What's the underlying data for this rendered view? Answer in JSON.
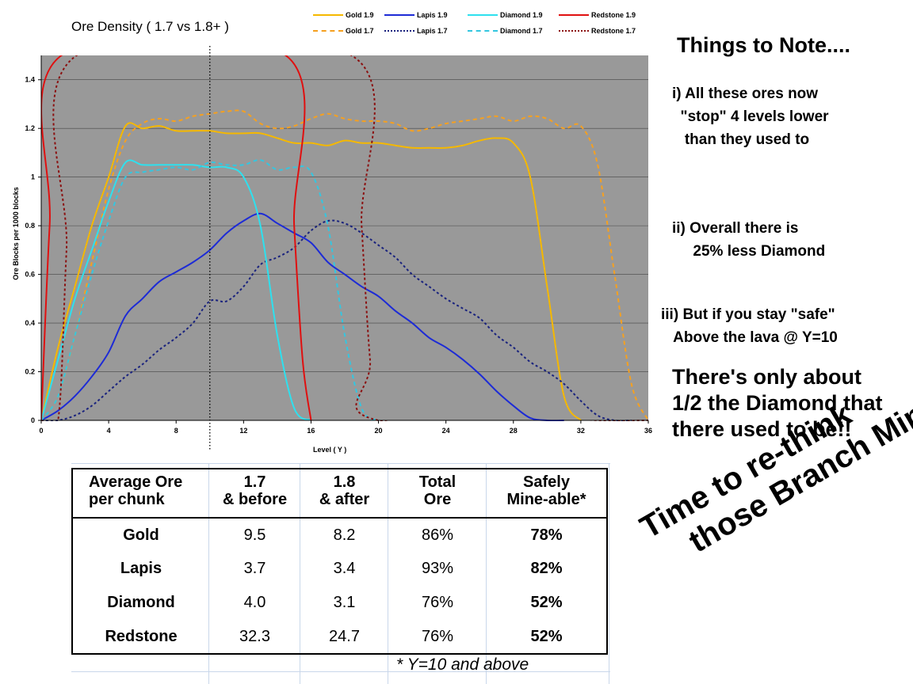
{
  "chart_data": {
    "type": "line",
    "title": "Ore Density ( 1.7 vs 1.8+ )",
    "xlabel": "Level ( Y )",
    "ylabel": "Ore Blocks per 1000 blocks",
    "xlim": [
      0,
      36
    ],
    "ylim": [
      0,
      1.5
    ],
    "x_ticks": [
      "0",
      "4",
      "8",
      "12",
      "16",
      "20",
      "24",
      "28",
      "32",
      "36"
    ],
    "y_ticks": [
      "0",
      "0.2",
      "0.4",
      "0.6",
      "0.8",
      "1",
      "1.2",
      "1.4"
    ],
    "background": "#999999",
    "grid": true,
    "legend_position": "top",
    "marker_line_x": 10,
    "series": [
      {
        "name": "Gold 1.9",
        "color": "#f5b800",
        "dash": "solid",
        "x": [
          0,
          1,
          2,
          3,
          4,
          5,
          6,
          7,
          8,
          9,
          10,
          11,
          12,
          13,
          14,
          15,
          16,
          17,
          18,
          19,
          20,
          21,
          22,
          23,
          24,
          25,
          26,
          27,
          28,
          29,
          30,
          31,
          32
        ],
        "y": [
          0,
          0.3,
          0.55,
          0.8,
          1.0,
          1.21,
          1.2,
          1.21,
          1.19,
          1.19,
          1.19,
          1.18,
          1.18,
          1.18,
          1.16,
          1.14,
          1.14,
          1.13,
          1.15,
          1.14,
          1.14,
          1.13,
          1.12,
          1.12,
          1.12,
          1.13,
          1.15,
          1.16,
          1.14,
          1.0,
          0.55,
          0.1,
          0
        ]
      },
      {
        "name": "Gold 1.7",
        "color": "#f5a020",
        "dash": "dashed",
        "x": [
          0,
          1,
          2,
          3,
          4,
          5,
          6,
          7,
          8,
          9,
          10,
          11,
          12,
          13,
          14,
          15,
          16,
          17,
          18,
          19,
          20,
          21,
          22,
          23,
          24,
          25,
          26,
          27,
          28,
          29,
          30,
          31,
          32,
          33,
          34,
          35,
          36
        ],
        "y": [
          0,
          0.1,
          0.35,
          0.65,
          0.95,
          1.15,
          1.22,
          1.24,
          1.23,
          1.25,
          1.26,
          1.27,
          1.27,
          1.22,
          1.2,
          1.21,
          1.24,
          1.26,
          1.24,
          1.23,
          1.23,
          1.22,
          1.19,
          1.2,
          1.22,
          1.23,
          1.24,
          1.25,
          1.23,
          1.25,
          1.24,
          1.2,
          1.21,
          1.05,
          0.6,
          0.15,
          0
        ]
      },
      {
        "name": "Lapis 1.9",
        "color": "#1d2bd6",
        "dash": "solid",
        "x": [
          0,
          1,
          2,
          3,
          4,
          5,
          6,
          7,
          8,
          9,
          10,
          11,
          12,
          13,
          14,
          15,
          16,
          17,
          18,
          19,
          20,
          21,
          22,
          23,
          24,
          25,
          26,
          27,
          28,
          29,
          30,
          31
        ],
        "y": [
          0,
          0.04,
          0.1,
          0.18,
          0.28,
          0.43,
          0.5,
          0.57,
          0.61,
          0.65,
          0.7,
          0.77,
          0.82,
          0.85,
          0.81,
          0.77,
          0.73,
          0.65,
          0.6,
          0.55,
          0.51,
          0.45,
          0.4,
          0.34,
          0.3,
          0.25,
          0.19,
          0.12,
          0.06,
          0.01,
          0,
          0
        ]
      },
      {
        "name": "Lapis 1.7",
        "color": "#1a237e",
        "dash": "dotted",
        "x": [
          0,
          1,
          2,
          3,
          4,
          5,
          6,
          7,
          8,
          9,
          10,
          11,
          12,
          13,
          14,
          15,
          16,
          17,
          18,
          19,
          20,
          21,
          22,
          23,
          24,
          25,
          26,
          27,
          28,
          29,
          30,
          31,
          32,
          33,
          34,
          35
        ],
        "y": [
          0,
          0,
          0.02,
          0.06,
          0.12,
          0.18,
          0.23,
          0.29,
          0.34,
          0.4,
          0.49,
          0.49,
          0.55,
          0.64,
          0.67,
          0.71,
          0.78,
          0.82,
          0.81,
          0.77,
          0.72,
          0.67,
          0.6,
          0.55,
          0.5,
          0.46,
          0.42,
          0.35,
          0.3,
          0.24,
          0.2,
          0.15,
          0.08,
          0.02,
          0,
          0
        ]
      },
      {
        "name": "Diamond 1.9",
        "color": "#2ee0ee",
        "dash": "solid",
        "x": [
          0,
          1,
          2,
          3,
          4,
          5,
          6,
          7,
          8,
          9,
          10,
          11,
          12,
          13,
          14,
          15,
          16
        ],
        "y": [
          0,
          0.25,
          0.5,
          0.7,
          0.9,
          1.06,
          1.05,
          1.05,
          1.05,
          1.05,
          1.04,
          1.04,
          1.0,
          0.8,
          0.35,
          0.05,
          0
        ]
      },
      {
        "name": "Diamond 1.7",
        "color": "#34c6e0",
        "dash": "dashed",
        "x": [
          0,
          1,
          2,
          3,
          4,
          5,
          6,
          7,
          8,
          9,
          10,
          11,
          12,
          13,
          14,
          15,
          16,
          17,
          18,
          19,
          20
        ],
        "y": [
          0,
          0.1,
          0.35,
          0.6,
          0.82,
          1.0,
          1.02,
          1.03,
          1.04,
          1.03,
          1.06,
          1.05,
          1.05,
          1.07,
          1.03,
          1.04,
          1.02,
          0.8,
          0.35,
          0.05,
          0
        ]
      },
      {
        "name": "Redstone 1.9",
        "color": "#e01010",
        "dash": "solid",
        "x": [
          0,
          0.5,
          1.2,
          14.5,
          15,
          15.5,
          16
        ],
        "y": [
          0,
          0.8,
          1.5,
          1.5,
          0.8,
          0.25,
          0
        ]
      },
      {
        "name": "Redstone 1.7",
        "color": "#8b1010",
        "dash": "dotted",
        "x": [
          0,
          1,
          1.5,
          2.1,
          18.4,
          19,
          19.5,
          20,
          36
        ],
        "y": [
          0,
          0,
          0.7,
          1.5,
          1.5,
          0.8,
          0.25,
          0,
          0
        ]
      }
    ]
  },
  "notes": {
    "title": "Things to Note....",
    "note1": "i) All these ores now\n  \"stop\" 4 levels lower\n   than they used to",
    "note2": "ii) Overall there is\n     25% less Diamond",
    "note3": "iii) But if you stay \"safe\"\n   Above the lava @ Y=10",
    "note4": "There's only about\n1/2 the Diamond that\nthere used to be!!"
  },
  "slogan": "Time to re-think\n    those Branch Mines!",
  "table": {
    "headers": [
      "Average Ore\nper chunk",
      "1.7\n& before",
      "1.8\n& after",
      "Total\nOre",
      "Safely\nMine-able*"
    ],
    "rows": [
      {
        "ore": "Gold",
        "v17": "9.5",
        "v18": "8.2",
        "total": "86%",
        "safe": "78%"
      },
      {
        "ore": "Lapis",
        "v17": "3.7",
        "v18": "3.4",
        "total": "93%",
        "safe": "82%"
      },
      {
        "ore": "Diamond",
        "v17": "4.0",
        "v18": "3.1",
        "total": "76%",
        "safe": "52%"
      },
      {
        "ore": "Redstone",
        "v17": "32.3",
        "v18": "24.7",
        "total": "76%",
        "safe": "52%"
      }
    ],
    "footnote": "* Y=10 and above"
  }
}
